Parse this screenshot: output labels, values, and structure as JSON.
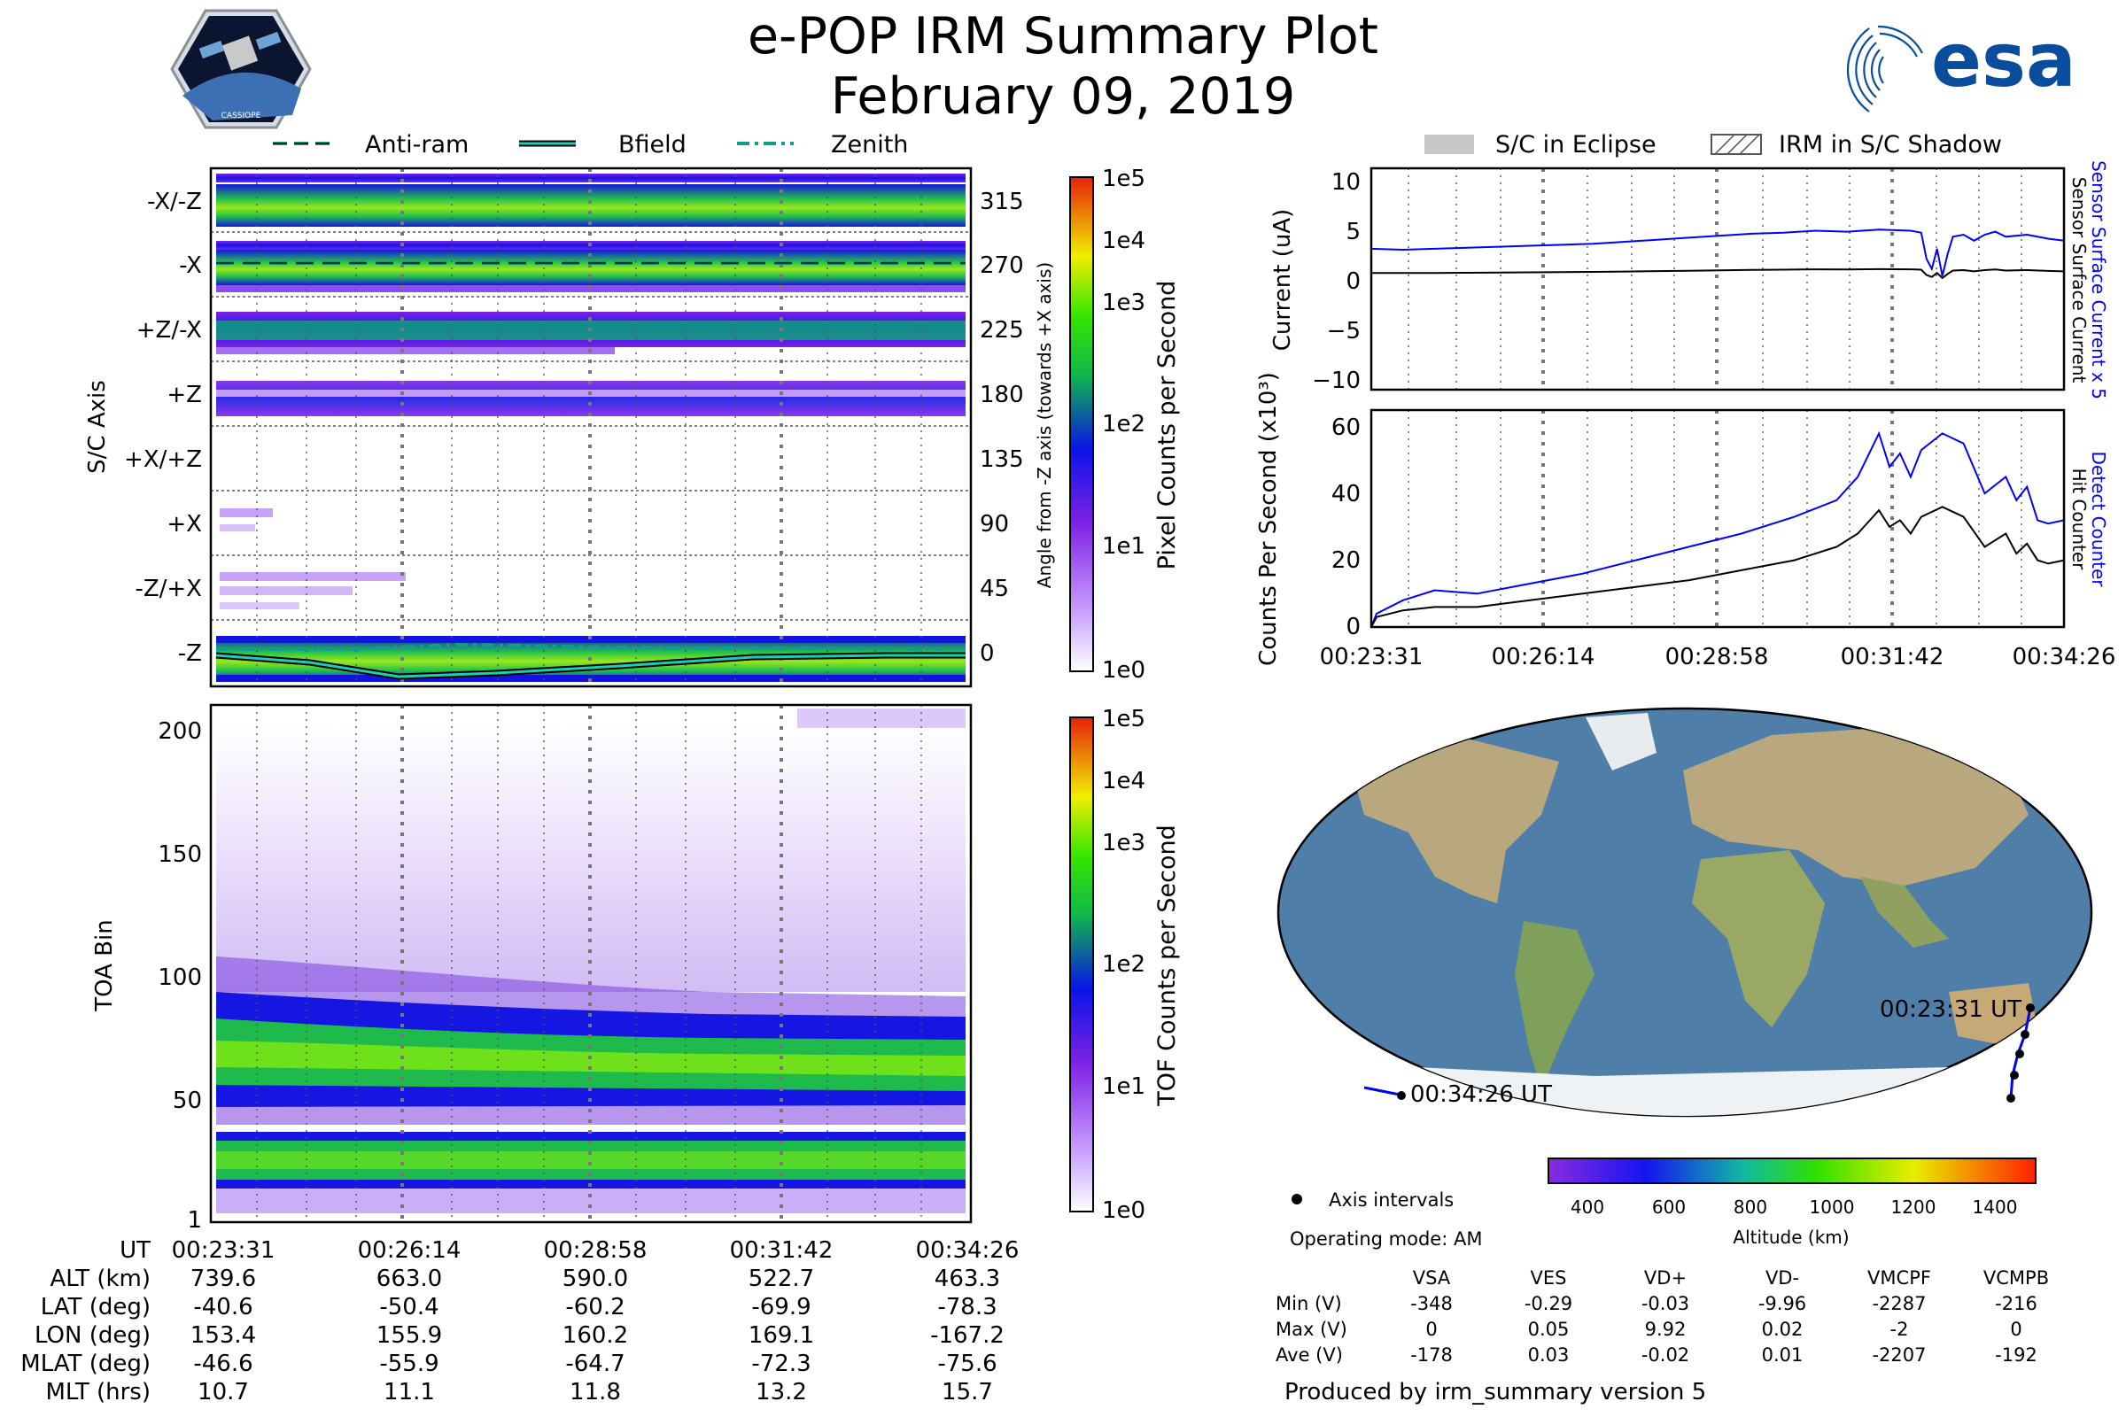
{
  "header": {
    "title": "e-POP IRM Summary Plot",
    "date": "February 09, 2019",
    "cassiope_label": "CASSIOPE",
    "esa_label": "esa"
  },
  "colors": {
    "current_blue": "#0000ff",
    "current_black": "#000000",
    "zenith_teal": "#1ccfb2",
    "eclipse_gray": "#c8c8c8",
    "ocean": "#4f7fa8",
    "land": "#b9a77d",
    "ice": "#eef2f5"
  },
  "legends": {
    "top_left": [
      "Anti-ram",
      "Bfield",
      "Zenith"
    ],
    "top_right": [
      "S/C in Eclipse",
      "IRM in S/C Shadow"
    ],
    "axis_intervals": "Axis intervals",
    "operating_mode": "Operating mode: AM",
    "produced_by": "Produced by irm_summary version 5"
  },
  "time_labels": [
    "00:23:31",
    "00:26:14",
    "00:28:58",
    "00:31:42",
    "00:34:26"
  ],
  "ephemeris": {
    "rows": [
      {
        "label": "UT",
        "values": [
          "00:23:31",
          "00:26:14",
          "00:28:58",
          "00:31:42",
          "00:34:26"
        ]
      },
      {
        "label": "ALT (km)",
        "values": [
          "739.6",
          "663.0",
          "590.0",
          "522.7",
          "463.3"
        ]
      },
      {
        "label": "LAT (deg)",
        "values": [
          "-40.6",
          "-50.4",
          "-60.2",
          "-69.9",
          "-78.3"
        ]
      },
      {
        "label": "LON (deg)",
        "values": [
          "153.4",
          "155.9",
          "160.2",
          "169.1",
          "-167.2"
        ]
      },
      {
        "label": "MLAT (deg)",
        "values": [
          "-46.6",
          "-55.9",
          "-64.7",
          "-72.3",
          "-75.6"
        ]
      },
      {
        "label": "MLT (hrs)",
        "values": [
          "10.7",
          "11.1",
          "11.8",
          "13.2",
          "15.7"
        ]
      }
    ]
  },
  "voltages": {
    "columns": [
      "VSA",
      "VES",
      "VD+",
      "VD-",
      "VMCPF",
      "VCMPB"
    ],
    "rows": [
      {
        "label": "Min (V)",
        "values": [
          "-348",
          "-0.29",
          "-0.03",
          "-9.96",
          "-2287",
          "-216"
        ]
      },
      {
        "label": "Max (V)",
        "values": [
          "0",
          "0.05",
          "9.92",
          "0.02",
          "-2",
          "0"
        ]
      },
      {
        "label": "Ave (V)",
        "values": [
          "-178",
          "0.03",
          "-0.02",
          "0.01",
          "-2207",
          "-192"
        ]
      }
    ]
  },
  "map": {
    "start_label": "00:23:31 UT",
    "end_label": "00:34:26 UT",
    "altitude_label": "Altitude (km)",
    "altitude_ticks": [
      "400",
      "600",
      "800",
      "1000",
      "1200",
      "1400"
    ]
  },
  "chart_data": [
    {
      "type": "heatmap",
      "name": "angle-spectrogram",
      "ylabel": "S/C Axis",
      "y2label": "Angle from -Z axis (towards +X axis)",
      "yticklabels": [
        "-X/-Z",
        "-X",
        "+Z/-X",
        "+Z",
        "+X/+Z",
        "+X",
        "-Z/+X",
        "-Z"
      ],
      "y2ticks": [
        "315",
        "270",
        "225",
        "180",
        "135",
        "90",
        "45",
        "0"
      ],
      "xticklabels": [
        "00:23:31",
        "00:26:14",
        "00:28:58",
        "00:31:42",
        "00:34:26"
      ],
      "colorbar_label": "Pixel Counts per Second",
      "colorbar_ticks": [
        "1e0",
        "1e1",
        "1e2",
        "1e3",
        "1e4",
        "1e5"
      ],
      "anti_ram_angle_deg": [
        275,
        272,
        270,
        270,
        270
      ],
      "bfield_angle_deg": [
        0,
        -10,
        -5,
        0,
        2
      ],
      "zenith_angle_deg": [
        0,
        2,
        4,
        4,
        2
      ]
    },
    {
      "type": "heatmap",
      "name": "toa-spectrogram",
      "ylabel": "TOA Bin",
      "yticks": [
        1,
        50,
        100,
        150,
        200
      ],
      "ylim": [
        1,
        210
      ],
      "xticklabels": [
        "00:23:31",
        "00:26:14",
        "00:28:58",
        "00:31:42",
        "00:34:26"
      ],
      "colorbar_label": "TOF Counts per Second",
      "colorbar_ticks": [
        "1e0",
        "1e1",
        "1e2",
        "1e3",
        "1e4",
        "1e5"
      ],
      "upper_band_center": [
        67,
        63,
        58,
        57,
        56
      ],
      "lower_band_center": [
        28,
        27,
        26,
        26,
        26
      ]
    },
    {
      "type": "line",
      "name": "current",
      "ylabel": "Current (uA)",
      "y2label_top": "Sensor Surface Current x 5",
      "y2label_bottom": "Sensor Surface Current",
      "ylim": [
        -11,
        11
      ],
      "yticks": [
        "10",
        "5",
        "0",
        "−5",
        "−10"
      ],
      "t": [
        0,
        30,
        60,
        90,
        120,
        150,
        180,
        210,
        240,
        270,
        300,
        330,
        360,
        390,
        420,
        450,
        480,
        510,
        520,
        525,
        530,
        535,
        540,
        545,
        550,
        560,
        570,
        580,
        590,
        600,
        620,
        640,
        655
      ],
      "series": [
        {
          "name": "Sensor Surface Current x 5",
          "values": [
            3.0,
            2.9,
            3.0,
            3.1,
            3.2,
            3.3,
            3.4,
            3.5,
            3.7,
            3.9,
            4.1,
            4.3,
            4.5,
            4.6,
            4.8,
            4.7,
            4.9,
            4.8,
            4.6,
            2.0,
            1.0,
            3.0,
            0.3,
            2.5,
            4.2,
            4.4,
            3.8,
            4.4,
            4.7,
            4.2,
            4.4,
            4.0,
            3.8
          ]
        },
        {
          "name": "Sensor Surface Current",
          "values": [
            0.6,
            0.6,
            0.6,
            0.62,
            0.64,
            0.66,
            0.68,
            0.7,
            0.74,
            0.78,
            0.82,
            0.86,
            0.9,
            0.92,
            0.96,
            0.94,
            0.98,
            0.96,
            0.92,
            0.4,
            0.2,
            0.6,
            0.1,
            0.5,
            0.84,
            0.88,
            0.76,
            0.88,
            0.94,
            0.84,
            0.88,
            0.8,
            0.76
          ]
        }
      ]
    },
    {
      "type": "line",
      "name": "counts",
      "ylabel": "Counts Per Second (x10³)",
      "y2label_top": "Detect Counter",
      "y2label_bottom": "Hit Counter",
      "ylim": [
        0,
        65
      ],
      "yticks": [
        "0",
        "20",
        "40",
        "60"
      ],
      "xticklabels": [
        "00:23:31",
        "00:26:14",
        "00:28:58",
        "00:31:42",
        "00:34:26"
      ],
      "t": [
        0,
        5,
        30,
        60,
        100,
        150,
        200,
        250,
        300,
        350,
        400,
        440,
        460,
        480,
        490,
        500,
        510,
        520,
        540,
        560,
        580,
        600,
        610,
        620,
        630,
        640,
        655
      ],
      "series": [
        {
          "name": "Detect Counter",
          "values": [
            0,
            4,
            8,
            11,
            10,
            13,
            16,
            20,
            24,
            28,
            33,
            38,
            45,
            58,
            48,
            52,
            45,
            53,
            58,
            55,
            40,
            45,
            38,
            42,
            32,
            31,
            32
          ]
        },
        {
          "name": "Hit Counter",
          "values": [
            0,
            3,
            5,
            6,
            6,
            8,
            10,
            12,
            14,
            17,
            20,
            24,
            28,
            35,
            30,
            32,
            28,
            33,
            36,
            33,
            24,
            28,
            22,
            25,
            20,
            19,
            20
          ]
        }
      ]
    }
  ]
}
